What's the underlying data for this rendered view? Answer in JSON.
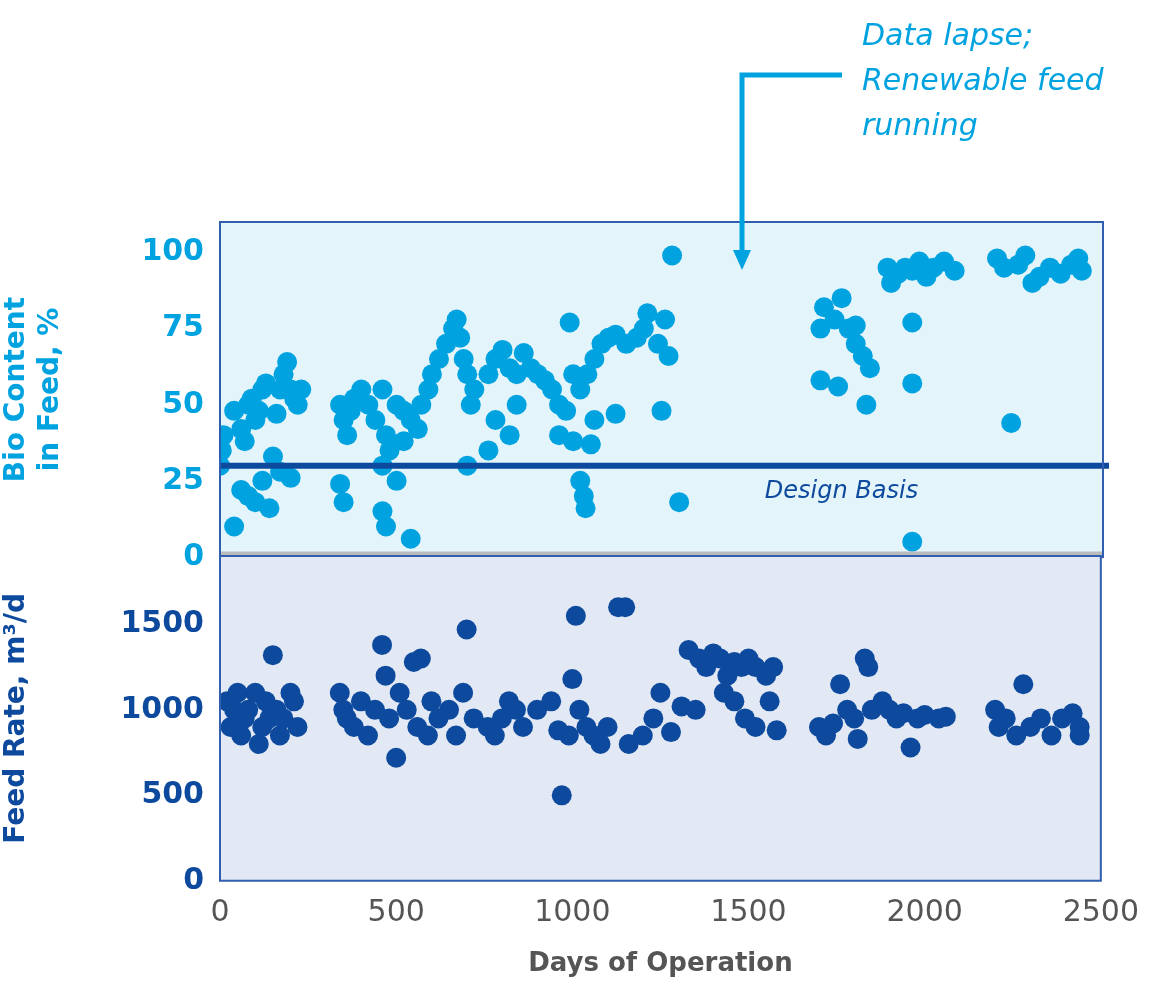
{
  "chart_data": [
    {
      "type": "scatter",
      "ylabel": "Bio Content in Feed, %",
      "color": "#00a3e0",
      "marker": "circle",
      "grid": false,
      "tick_labels": "y",
      "xlim": [
        0,
        2500
      ],
      "ylim": [
        0,
        110
      ],
      "yticks": [
        0,
        25,
        50,
        75,
        100
      ],
      "ref_lines": [
        {
          "axis": "y",
          "value": 30,
          "label": "Design Basis",
          "color": "#0d4a9e"
        }
      ],
      "annotations": [
        "Data lapse; Renewable feed running"
      ],
      "x": [
        0,
        5,
        10,
        40,
        60,
        70,
        80,
        90,
        100,
        110,
        120,
        130,
        160,
        170,
        180,
        190,
        200,
        210,
        220,
        40,
        60,
        80,
        100,
        120,
        140,
        150,
        170,
        200,
        230,
        340,
        350,
        360,
        370,
        380,
        400,
        420,
        440,
        460,
        470,
        480,
        500,
        520,
        540,
        560,
        340,
        350,
        460,
        470,
        460,
        500,
        540,
        520,
        570,
        590,
        600,
        620,
        640,
        660,
        670,
        680,
        690,
        700,
        710,
        720,
        700,
        760,
        780,
        800,
        820,
        840,
        860,
        880,
        900,
        920,
        940,
        960,
        980,
        1000,
        990,
        780,
        820,
        840,
        760,
        960,
        1000,
        1020,
        1040,
        1060,
        1080,
        1100,
        1120,
        1150,
        1180,
        1200,
        1210,
        1240,
        1260,
        1270,
        1250,
        1280,
        1300,
        1020,
        1030,
        1035,
        1050,
        1120,
        1060,
        1700,
        1710,
        1740,
        1760,
        1780,
        1800,
        1820,
        1840,
        1700,
        1750,
        1830,
        1800,
        1890,
        1900,
        1920,
        1940,
        1960,
        1980,
        2000,
        2020,
        2050,
        2080,
        1960,
        1960,
        1960,
        2200,
        2220,
        2260,
        2280,
        2300,
        2320,
        2350,
        2380,
        2410,
        2430,
        2440,
        2240
      ],
      "values": [
        30,
        35,
        40,
        48,
        42,
        38,
        50,
        52,
        45,
        48,
        55,
        57,
        47,
        55,
        60,
        64,
        55,
        52,
        50,
        10,
        22,
        20,
        18,
        25,
        16,
        33,
        28,
        26,
        55,
        50,
        45,
        40,
        48,
        52,
        55,
        50,
        45,
        55,
        40,
        35,
        50,
        48,
        45,
        42,
        24,
        18,
        15,
        10,
        30,
        25,
        6,
        38,
        50,
        55,
        60,
        65,
        70,
        75,
        78,
        72,
        65,
        60,
        50,
        55,
        30,
        60,
        65,
        68,
        62,
        60,
        67,
        62,
        60,
        58,
        55,
        50,
        48,
        60,
        77,
        45,
        40,
        50,
        35,
        40,
        38,
        55,
        60,
        65,
        70,
        72,
        73,
        70,
        72,
        75,
        80,
        70,
        78,
        66,
        48,
        99,
        18,
        25,
        20,
        16,
        37,
        47,
        45,
        75,
        82,
        78,
        85,
        75,
        70,
        66,
        62,
        58,
        56,
        50,
        76,
        95,
        90,
        93,
        95,
        94,
        97,
        92,
        95,
        97,
        94,
        77,
        57,
        5,
        98,
        95,
        96,
        99,
        90,
        92,
        95,
        93,
        96,
        98,
        94,
        44
      ]
    },
    {
      "type": "scatter",
      "ylabel": "Feed Rate, m³/d",
      "xlabel": "Days of Operation",
      "color": "#0d4a9e",
      "marker": "circle",
      "grid": false,
      "xlim": [
        0,
        2500
      ],
      "xticks": [
        0,
        500,
        1000,
        1500,
        2000,
        2500
      ],
      "ylim": [
        0,
        1900
      ],
      "yticks": [
        0,
        500,
        1000,
        1500
      ],
      "x": [
        20,
        30,
        40,
        50,
        60,
        70,
        80,
        100,
        110,
        120,
        130,
        140,
        150,
        160,
        170,
        180,
        200,
        210,
        220,
        340,
        350,
        360,
        380,
        400,
        420,
        440,
        460,
        470,
        480,
        500,
        510,
        530,
        550,
        570,
        560,
        590,
        600,
        620,
        650,
        670,
        690,
        700,
        720,
        760,
        780,
        800,
        820,
        840,
        860,
        900,
        940,
        960,
        970,
        990,
        1000,
        1010,
        1020,
        1040,
        1060,
        1080,
        1100,
        1130,
        1150,
        1160,
        1200,
        1230,
        1250,
        1280,
        1310,
        1330,
        1360,
        1380,
        1400,
        1420,
        1440,
        1460,
        1480,
        1500,
        1520,
        1550,
        1570,
        1350,
        1430,
        1460,
        1490,
        1520,
        1560,
        1580,
        1700,
        1720,
        1740,
        1760,
        1780,
        1800,
        1810,
        1830,
        1840,
        1850,
        1880,
        1900,
        1920,
        1940,
        1960,
        1980,
        2000,
        2040,
        2060,
        2200,
        2210,
        2230,
        2260,
        2280,
        2300,
        2330,
        2360,
        2390,
        2420,
        2440,
        2440
      ],
      "values": [
        1050,
        900,
        1000,
        1100,
        850,
        950,
        1000,
        1100,
        800,
        900,
        1050,
        950,
        1320,
        1000,
        850,
        950,
        1100,
        1050,
        900,
        1100,
        1000,
        950,
        900,
        1050,
        850,
        1000,
        1380,
        1200,
        950,
        720,
        1100,
        1000,
        1280,
        1300,
        900,
        850,
        1050,
        950,
        1000,
        850,
        1100,
        1470,
        950,
        900,
        850,
        950,
        1050,
        1000,
        900,
        1000,
        1050,
        880,
        500,
        850,
        1180,
        1550,
        1000,
        900,
        850,
        800,
        900,
        1600,
        1600,
        800,
        850,
        950,
        1100,
        870,
        1020,
        1350,
        1300,
        1250,
        1330,
        1300,
        1200,
        1280,
        1250,
        1300,
        1250,
        1200,
        1250,
        1000,
        1100,
        1050,
        950,
        900,
        1050,
        880,
        900,
        850,
        920,
        1150,
        1000,
        950,
        830,
        1300,
        1250,
        1000,
        1050,
        1000,
        950,
        980,
        780,
        950,
        970,
        950,
        960,
        1000,
        900,
        950,
        850,
        1150,
        900,
        950,
        850,
        950,
        980,
        900,
        850
      ]
    }
  ]
}
